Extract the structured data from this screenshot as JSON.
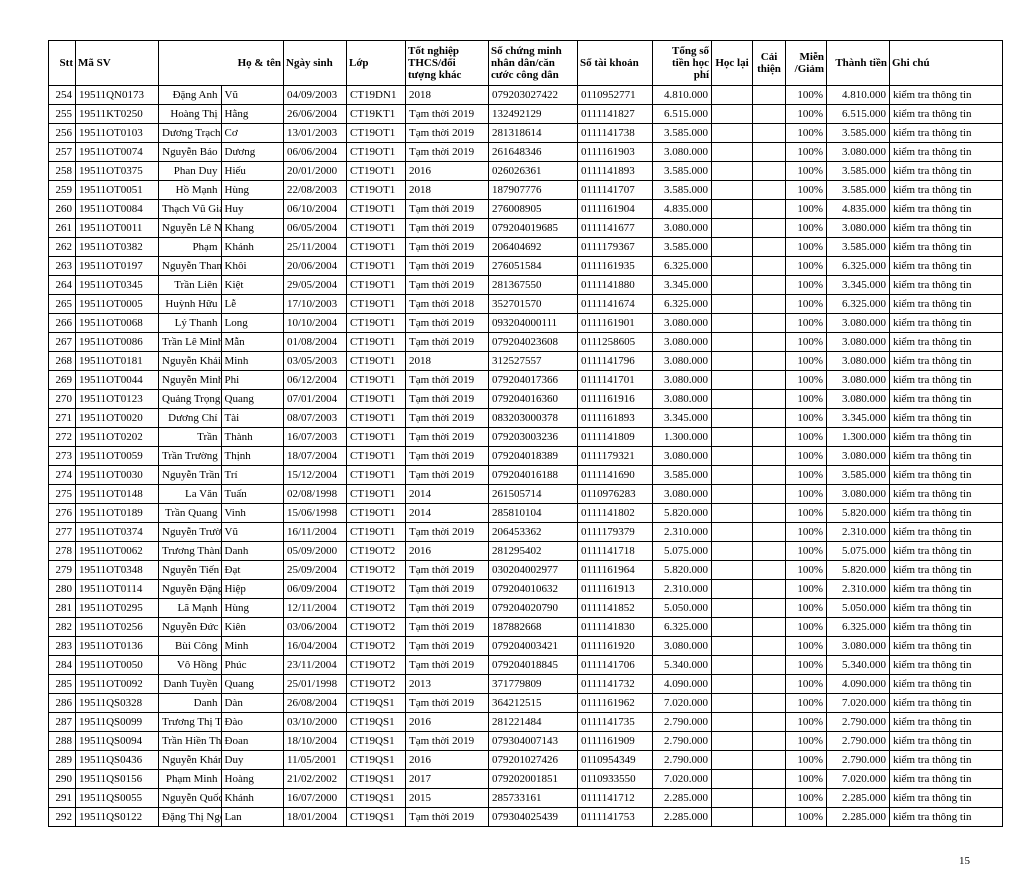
{
  "page_number": "15",
  "columns": [
    "Stt",
    "Mã SV",
    "Họ & tên",
    "",
    "Ngày sinh",
    "Lớp",
    "Tốt nghiệp THCS/đối tượng khác",
    "Số chứng minh nhân dân/căn cước công dân",
    "Số tài khoản",
    "Tổng số tiền học phí",
    "Học lại",
    "Cải thiện",
    "Miễn /Giảm",
    "Thành tiền",
    "Ghi chú"
  ],
  "rows": [
    [
      "254",
      "19511QN0173",
      "Đặng Anh",
      "Vũ",
      "04/09/2003",
      "CT19DN1",
      "2018",
      "079203027422",
      "0110952771",
      "4.810.000",
      "",
      "",
      "100%",
      "4.810.000",
      "kiểm tra thông tin"
    ],
    [
      "255",
      "19511KT0250",
      "Hoàng Thị",
      "Hằng",
      "26/06/2004",
      "CT19KT1",
      "Tạm thời 2019",
      "132492129",
      "0111141827",
      "6.515.000",
      "",
      "",
      "100%",
      "6.515.000",
      "kiểm tra thông tin"
    ],
    [
      "256",
      "19511OT0103",
      "Dương Trạch",
      "Cơ",
      "13/01/2003",
      "CT19OT1",
      "Tạm thời 2019",
      "281318614",
      "0111141738",
      "3.585.000",
      "",
      "",
      "100%",
      "3.585.000",
      "kiểm tra thông tin"
    ],
    [
      "257",
      "19511OT0074",
      "Nguyễn Bảo",
      "Dương",
      "06/06/2004",
      "CT19OT1",
      "Tạm thời 2019",
      "261648346",
      "0111161903",
      "3.080.000",
      "",
      "",
      "100%",
      "3.080.000",
      "kiểm tra thông tin"
    ],
    [
      "258",
      "19511OT0375",
      "Phan Duy",
      "Hiếu",
      "20/01/2000",
      "CT19OT1",
      "2016",
      "026026361",
      "0111141893",
      "3.585.000",
      "",
      "",
      "100%",
      "3.585.000",
      "kiểm tra thông tin"
    ],
    [
      "259",
      "19511OT0051",
      "Hồ Mạnh",
      "Hùng",
      "22/08/2003",
      "CT19OT1",
      "2018",
      "187907776",
      "0111141707",
      "3.585.000",
      "",
      "",
      "100%",
      "3.585.000",
      "kiểm tra thông tin"
    ],
    [
      "260",
      "19511OT0084",
      "Thạch Vũ Gia",
      "Huy",
      "06/10/2004",
      "CT19OT1",
      "Tạm thời 2019",
      "276008905",
      "0111161904",
      "4.835.000",
      "",
      "",
      "100%",
      "4.835.000",
      "kiểm tra thông tin"
    ],
    [
      "261",
      "19511OT0011",
      "Nguyễn Lê Nhật",
      "Khang",
      "06/05/2004",
      "CT19OT1",
      "Tạm thời 2019",
      "079204019685",
      "0111141677",
      "3.080.000",
      "",
      "",
      "100%",
      "3.080.000",
      "kiểm tra thông tin"
    ],
    [
      "262",
      "19511OT0382",
      "Phạm",
      "Khánh",
      "25/11/2004",
      "CT19OT1",
      "Tạm thời 2019",
      "206404692",
      "0111179367",
      "3.585.000",
      "",
      "",
      "100%",
      "3.585.000",
      "kiểm tra thông tin"
    ],
    [
      "263",
      "19511OT0197",
      "Nguyễn Thanh Minh",
      "Khôi",
      "20/06/2004",
      "CT19OT1",
      "Tạm thời 2019",
      "276051584",
      "0111161935",
      "6.325.000",
      "",
      "",
      "100%",
      "6.325.000",
      "kiểm tra thông tin"
    ],
    [
      "264",
      "19511OT0345",
      "Trần Liên",
      "Kiệt",
      "29/05/2004",
      "CT19OT1",
      "Tạm thời 2019",
      "281367550",
      "0111141880",
      "3.345.000",
      "",
      "",
      "100%",
      "3.345.000",
      "kiểm tra thông tin"
    ],
    [
      "265",
      "19511OT0005",
      "Huỳnh Hữu",
      "Lễ",
      "17/10/2003",
      "CT19OT1",
      "Tạm thời 2018",
      "352701570",
      "0111141674",
      "6.325.000",
      "",
      "",
      "100%",
      "6.325.000",
      "kiểm tra thông tin"
    ],
    [
      "266",
      "19511OT0068",
      "Lý Thanh",
      "Long",
      "10/10/2004",
      "CT19OT1",
      "Tạm thời 2019",
      "093204000111",
      "0111161901",
      "3.080.000",
      "",
      "",
      "100%",
      "3.080.000",
      "kiểm tra thông tin"
    ],
    [
      "267",
      "19511OT0086",
      "Trần Lê Minh",
      "Mẫn",
      "01/08/2004",
      "CT19OT1",
      "Tạm thời 2019",
      "079204023608",
      "0111258605",
      "3.080.000",
      "",
      "",
      "100%",
      "3.080.000",
      "kiểm tra thông tin"
    ],
    [
      "268",
      "19511OT0181",
      "Nguyễn Khải",
      "Minh",
      "03/05/2003",
      "CT19OT1",
      "2018",
      "312527557",
      "0111141796",
      "3.080.000",
      "",
      "",
      "100%",
      "3.080.000",
      "kiểm tra thông tin"
    ],
    [
      "269",
      "19511OT0044",
      "Nguyễn Minh",
      "Phi",
      "06/12/2004",
      "CT19OT1",
      "Tạm thời 2019",
      "079204017366",
      "0111141701",
      "3.080.000",
      "",
      "",
      "100%",
      "3.080.000",
      "kiểm tra thông tin"
    ],
    [
      "270",
      "19511OT0123",
      "Quảng Trọng Minh",
      "Quang",
      "07/01/2004",
      "CT19OT1",
      "Tạm thời 2019",
      "079204016360",
      "0111161916",
      "3.080.000",
      "",
      "",
      "100%",
      "3.080.000",
      "kiểm tra thông tin"
    ],
    [
      "271",
      "19511OT0020",
      "Dương Chí",
      "Tài",
      "08/07/2003",
      "CT19OT1",
      "Tạm thời 2019",
      "083203000378",
      "0111161893",
      "3.345.000",
      "",
      "",
      "100%",
      "3.345.000",
      "kiểm tra thông tin"
    ],
    [
      "272",
      "19511OT0202",
      "Trần",
      "Thành",
      "16/07/2003",
      "CT19OT1",
      "Tạm thời 2019",
      "079203003236",
      "0111141809",
      "1.300.000",
      "",
      "",
      "100%",
      "1.300.000",
      "kiểm tra thông tin"
    ],
    [
      "273",
      "19511OT0059",
      "Trần Trường",
      "Thịnh",
      "18/07/2004",
      "CT19OT1",
      "Tạm thời 2019",
      "079204018389",
      "0111179321",
      "3.080.000",
      "",
      "",
      "100%",
      "3.080.000",
      "kiểm tra thông tin"
    ],
    [
      "274",
      "19511OT0030",
      "Nguyễn Trần Minh",
      "Trí",
      "15/12/2004",
      "CT19OT1",
      "Tạm thời 2019",
      "079204016188",
      "0111141690",
      "3.585.000",
      "",
      "",
      "100%",
      "3.585.000",
      "kiểm tra thông tin"
    ],
    [
      "275",
      "19511OT0148",
      "La Văn",
      "Tuấn",
      "02/08/1998",
      "CT19OT1",
      "2014",
      "261505714",
      "0110976283",
      "3.080.000",
      "",
      "",
      "100%",
      "3.080.000",
      "kiểm tra thông tin"
    ],
    [
      "276",
      "19511OT0189",
      "Trần Quang",
      "Vinh",
      "15/06/1998",
      "CT19OT1",
      "2014",
      "285810104",
      "0111141802",
      "5.820.000",
      "",
      "",
      "100%",
      "5.820.000",
      "kiểm tra thông tin"
    ],
    [
      "277",
      "19511OT0374",
      "Nguyễn Trường",
      "Vũ",
      "16/11/2004",
      "CT19OT1",
      "Tạm thời 2019",
      "206453362",
      "0111179379",
      "2.310.000",
      "",
      "",
      "100%",
      "2.310.000",
      "kiểm tra thông tin"
    ],
    [
      "278",
      "19511OT0062",
      "Trương Thành",
      "Danh",
      "05/09/2000",
      "CT19OT2",
      "2016",
      "281295402",
      "0111141718",
      "5.075.000",
      "",
      "",
      "100%",
      "5.075.000",
      "kiểm tra thông tin"
    ],
    [
      "279",
      "19511OT0348",
      "Nguyễn Tiến",
      "Đạt",
      "25/09/2004",
      "CT19OT2",
      "Tạm thời 2019",
      "030204002977",
      "0111161964",
      "5.820.000",
      "",
      "",
      "100%",
      "5.820.000",
      "kiểm tra thông tin"
    ],
    [
      "280",
      "19511OT0114",
      "Nguyễn Đặng Hoàng",
      "Hiệp",
      "06/09/2004",
      "CT19OT2",
      "Tạm thời 2019",
      "079204010632",
      "0111161913",
      "2.310.000",
      "",
      "",
      "100%",
      "2.310.000",
      "kiểm tra thông tin"
    ],
    [
      "281",
      "19511OT0295",
      "Lã Mạnh",
      "Hùng",
      "12/11/2004",
      "CT19OT2",
      "Tạm thời 2019",
      "079204020790",
      "0111141852",
      "5.050.000",
      "",
      "",
      "100%",
      "5.050.000",
      "kiểm tra thông tin"
    ],
    [
      "282",
      "19511OT0256",
      "Nguyễn Đức",
      "Kiên",
      "03/06/2004",
      "CT19OT2",
      "Tạm thời 2019",
      "187882668",
      "0111141830",
      "6.325.000",
      "",
      "",
      "100%",
      "6.325.000",
      "kiểm tra thông tin"
    ],
    [
      "283",
      "19511OT0136",
      "Bùi Công",
      "Minh",
      "16/04/2004",
      "CT19OT2",
      "Tạm thời 2019",
      "079204003421",
      "0111161920",
      "3.080.000",
      "",
      "",
      "100%",
      "3.080.000",
      "kiểm tra thông tin"
    ],
    [
      "284",
      "19511OT0050",
      "Vô Hồng",
      "Phúc",
      "23/11/2004",
      "CT19OT2",
      "Tạm thời 2019",
      "079204018845",
      "0111141706",
      "5.340.000",
      "",
      "",
      "100%",
      "5.340.000",
      "kiểm tra thông tin"
    ],
    [
      "285",
      "19511OT0092",
      "Danh Tuyền",
      "Quang",
      "25/01/1998",
      "CT19OT2",
      "2013",
      "371779809",
      "0111141732",
      "4.090.000",
      "",
      "",
      "100%",
      "4.090.000",
      "kiểm tra thông tin"
    ],
    [
      "286",
      "19511QS0328",
      "Danh",
      "Dàn",
      "26/08/2004",
      "CT19QS1",
      "Tạm thời 2019",
      "364212515",
      "0111161962",
      "7.020.000",
      "",
      "",
      "100%",
      "7.020.000",
      "kiểm tra thông tin"
    ],
    [
      "287",
      "19511QS0099",
      "Trương Thị Thanh",
      "Đào",
      "03/10/2000",
      "CT19QS1",
      "2016",
      "281221484",
      "0111141735",
      "2.790.000",
      "",
      "",
      "100%",
      "2.790.000",
      "kiểm tra thông tin"
    ],
    [
      "288",
      "19511QS0094",
      "Trần Hiền Thục",
      "Đoan",
      "18/10/2004",
      "CT19QS1",
      "Tạm thời 2019",
      "079304007143",
      "0111161909",
      "2.790.000",
      "",
      "",
      "100%",
      "2.790.000",
      "kiểm tra thông tin"
    ],
    [
      "289",
      "19511QS0436",
      "Nguyễn Khánh",
      "Duy",
      "11/05/2001",
      "CT19QS1",
      "2016",
      "079201027426",
      "0110954349",
      "2.790.000",
      "",
      "",
      "100%",
      "2.790.000",
      "kiểm tra thông tin"
    ],
    [
      "290",
      "19511QS0156",
      "Phạm Minh",
      "Hoàng",
      "21/02/2002",
      "CT19QS1",
      "2017",
      "079202001851",
      "0110933550",
      "7.020.000",
      "",
      "",
      "100%",
      "7.020.000",
      "kiểm tra thông tin"
    ],
    [
      "291",
      "19511QS0055",
      "Nguyễn Quốc",
      "Khánh",
      "16/07/2000",
      "CT19QS1",
      "2015",
      "285733161",
      "0111141712",
      "2.285.000",
      "",
      "",
      "100%",
      "2.285.000",
      "kiểm tra thông tin"
    ],
    [
      "292",
      "19511QS0122",
      "Đặng Thị Ngọc",
      "Lan",
      "18/01/2004",
      "CT19QS1",
      "Tạm thời 2019",
      "079304025439",
      "0111141753",
      "2.285.000",
      "",
      "",
      "100%",
      "2.285.000",
      "kiểm tra thông tin"
    ]
  ]
}
